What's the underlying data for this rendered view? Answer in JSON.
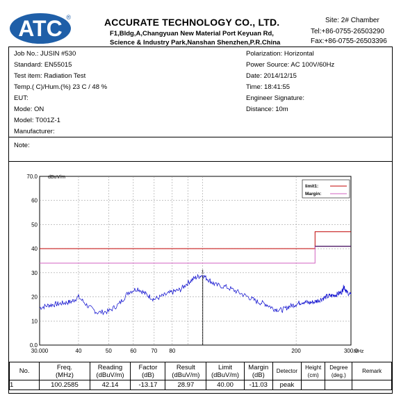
{
  "header": {
    "logo_text": "ATC",
    "logo_mark": "®",
    "company": "ACCURATE TECHNOLOGY CO., LTD.",
    "address_line1": "F1,Bldg,A,Changyuan New Material Port Keyuan Rd,",
    "address_line2": "Science & Industry Park,Nanshan Shenzhen,P.R.China",
    "site": "Site:  2# Chamber",
    "tel": "Tel:+86-0755-26503290",
    "fax": "Fax:+86-0755-26503396"
  },
  "info": {
    "job_no": "Job No.:   JUSIN #530",
    "standard": "Standard:  EN55015",
    "test_item": "Test item:    Radiation Test",
    "temp_hum": "Temp.(   C)/Hum.(%)   23    C / 48 %",
    "eut": "EUT:",
    "mode": "Mode:       ON",
    "model": "Model:      T001Z-1",
    "manufacturer": "Manufacturer:",
    "polarization": "Polarization:      Horizontal",
    "power_source": "Power Source:    AC 100V/60Hz",
    "date": "Date: 2014/12/15",
    "time": "Time: 18:41:55",
    "engineer_signature": "Engineer Signature:",
    "distance": "Distance:      10m",
    "note": "Note:"
  },
  "chart_data": {
    "type": "line",
    "ylabel": "dBuV/m",
    "xlabel": "MHz",
    "x_scale": "log",
    "xlim": [
      30,
      300
    ],
    "ylim": [
      0,
      70
    ],
    "y_ticks": [
      "0.0",
      "10",
      "20",
      "30",
      "40",
      "50",
      "60",
      "70.0"
    ],
    "x_ticks": [
      {
        "value": 30,
        "label": "30.000"
      },
      {
        "value": 40,
        "label": "40"
      },
      {
        "value": 50,
        "label": "50"
      },
      {
        "value": 60,
        "label": "60"
      },
      {
        "value": 70,
        "label": "70"
      },
      {
        "value": 80,
        "label": "80"
      },
      {
        "value": 200,
        "label": "200"
      },
      {
        "value": 300,
        "label": "300.0"
      }
    ],
    "grid": true,
    "legend": [
      {
        "name": "limit1:",
        "color": "#c00000"
      },
      {
        "name": "Margin:",
        "color": "#d060c0"
      }
    ],
    "legend_position": "top-right",
    "marker": {
      "label": "1",
      "x": 100.2585,
      "y": 28.97
    },
    "limit_line": {
      "x": [
        30,
        230,
        230,
        300
      ],
      "y": [
        40,
        40,
        47,
        47
      ],
      "color": "#c00000"
    },
    "margin_line": {
      "x": [
        30,
        230,
        230,
        300
      ],
      "y": [
        34,
        34,
        41,
        41
      ],
      "color": "#d060c0"
    },
    "dark_line": {
      "x": [
        230,
        300
      ],
      "y": [
        41,
        41
      ],
      "color": "#300050"
    },
    "series": [
      {
        "color": "#0000cc",
        "x": [
          30,
          32,
          34,
          36,
          38,
          40,
          43,
          46,
          50,
          54,
          58,
          62,
          66,
          70,
          75,
          80,
          85,
          90,
          95,
          100,
          105,
          110,
          120,
          130,
          140,
          150,
          160,
          170,
          180,
          190,
          200,
          210,
          220,
          230,
          240,
          250,
          260,
          270,
          280,
          285,
          290,
          300
        ],
        "y": [
          15.5,
          16.5,
          17,
          17.5,
          18,
          20,
          16,
          13.5,
          14,
          17,
          22,
          23.5,
          21,
          19,
          20.5,
          22,
          23,
          26,
          28,
          29,
          27,
          25,
          24,
          22,
          20,
          18,
          17,
          15,
          14.5,
          16,
          17,
          18,
          17.5,
          18,
          19,
          20,
          20.5,
          21,
          22,
          24.5,
          22,
          21
        ]
      }
    ]
  },
  "table": {
    "headers": [
      "No.",
      "Freq.\n(MHz)",
      "Reading\n(dBuV/m)",
      "Factor\n(dB)",
      "Result\n(dBuV/m)",
      "Limit\n(dBuV/m)",
      "Margin\n(dB)",
      "Detector",
      "Height\n(cm)",
      "Degree\n(deg.)",
      "Remark"
    ],
    "rows": [
      [
        "1",
        "100.2585",
        "42.14",
        "-13.17",
        "28.97",
        "40.00",
        "-11.03",
        "peak",
        "",
        "",
        ""
      ]
    ]
  }
}
